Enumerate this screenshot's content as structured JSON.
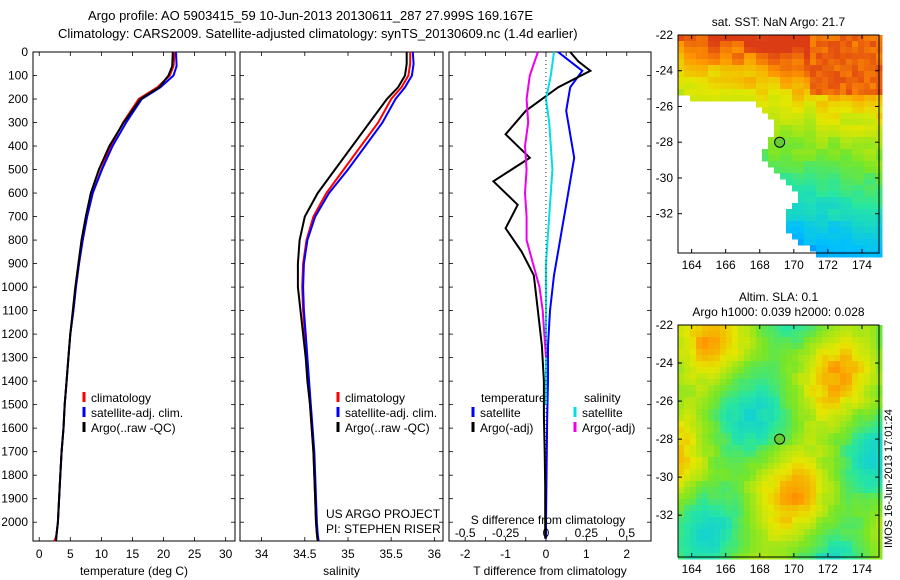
{
  "header": {
    "line1": "Argo profile: AO 5903415_59 10-Jun-2013 20130611_287 27.999S 169.167E",
    "line2": "Climatology: CARS2009. Satellite-adjusted climatology: synTS_20130609.nc (1.4d earlier)"
  },
  "colors": {
    "climatology": "#ff0000",
    "satellite": "#0000ff",
    "argo": "#000000",
    "salinity_satellite": "#00e0e0",
    "salinity_argo": "#ee00ee"
  },
  "chart_data": [
    {
      "type": "line",
      "xlabel": "temperature (deg C)",
      "xticks": [
        "0",
        "5",
        "10",
        "15",
        "20",
        "25",
        "30"
      ],
      "xlim": [
        -1,
        31.5
      ],
      "ylim": [
        0,
        2080
      ],
      "yticks": [
        "0",
        "100",
        "200",
        "300",
        "400",
        "500",
        "600",
        "700",
        "800",
        "900",
        "1000",
        "1100",
        "1200",
        "1300",
        "1400",
        "1500",
        "1600",
        "1700",
        "1800",
        "1900",
        "2000"
      ],
      "legend": [
        "climatology",
        "satellite-adj. clim.",
        "Argo(..raw -QC)"
      ],
      "series": [
        {
          "name": "climatology",
          "color": "#ff0000",
          "x": [
            21.8,
            21.6,
            21.0,
            19.0,
            16.0,
            13.5,
            11.5,
            10.0,
            8.6,
            7.7,
            7.0,
            6.4,
            5.9,
            5.5,
            5.0,
            4.7,
            4.4,
            4.1,
            3.9,
            3.6,
            3.4,
            3.2,
            3.0,
            2.8,
            2.7,
            2.6,
            2.5,
            2.4
          ],
          "y": [
            0,
            60,
            100,
            150,
            200,
            300,
            400,
            500,
            600,
            700,
            800,
            900,
            1000,
            1100,
            1200,
            1300,
            1400,
            1500,
            1600,
            1700,
            1800,
            1900,
            2000,
            2050,
            2060,
            2070,
            2075,
            2080
          ]
        },
        {
          "name": "satellite-adj. clim.",
          "color": "#0000ff",
          "x": [
            22.0,
            22.1,
            21.6,
            19.5,
            16.5,
            14.0,
            11.8,
            10.1,
            8.6,
            7.7,
            7.0,
            6.4,
            5.9,
            5.5,
            5.0,
            4.7,
            4.4,
            4.1,
            3.9,
            3.6,
            3.4,
            3.2,
            3.0,
            2.8,
            2.7
          ],
          "y": [
            0,
            60,
            100,
            150,
            200,
            300,
            400,
            500,
            600,
            700,
            800,
            900,
            1000,
            1100,
            1200,
            1300,
            1400,
            1500,
            1600,
            1700,
            1800,
            1900,
            2000,
            2050,
            2080
          ]
        },
        {
          "name": "Argo(..raw -QC)",
          "color": "#000000",
          "x": [
            21.5,
            21.4,
            20.8,
            19.3,
            16.3,
            13.6,
            11.3,
            9.6,
            8.3,
            7.5,
            6.8,
            6.3,
            5.8,
            5.4,
            5.0,
            4.7,
            4.4,
            4.1,
            3.9,
            3.6,
            3.4,
            3.2,
            3.0,
            2.8,
            2.7
          ],
          "y": [
            0,
            60,
            100,
            150,
            200,
            300,
            400,
            500,
            600,
            700,
            800,
            900,
            1000,
            1100,
            1200,
            1300,
            1400,
            1500,
            1600,
            1700,
            1800,
            1900,
            2000,
            2050,
            2080
          ]
        }
      ]
    },
    {
      "type": "line",
      "xlabel": "salinity",
      "xticks": [
        "34",
        "34.5",
        "35",
        "35.5",
        "36"
      ],
      "xlim": [
        33.75,
        36.1
      ],
      "ylim": [
        0,
        2080
      ],
      "legend": [
        "climatology",
        "satellite-adj. clim.",
        "Argo(..raw -QC)"
      ],
      "annotations": [
        "US ARGO PROJECT",
        "PI: STEPHEN RISER"
      ],
      "series": [
        {
          "name": "climatology",
          "color": "#ff0000",
          "x": [
            35.72,
            35.72,
            35.7,
            35.62,
            35.5,
            35.35,
            35.15,
            34.95,
            34.75,
            34.6,
            34.52,
            34.48,
            34.47,
            34.48,
            34.5,
            34.52,
            34.54,
            34.56,
            34.58,
            34.6,
            34.61,
            34.62,
            34.63,
            34.64,
            34.65
          ],
          "y": [
            0,
            50,
            100,
            150,
            200,
            300,
            400,
            500,
            600,
            700,
            800,
            900,
            1000,
            1100,
            1200,
            1300,
            1400,
            1500,
            1600,
            1700,
            1800,
            1900,
            2000,
            2050,
            2080
          ]
        },
        {
          "name": "satellite-adj. clim.",
          "color": "#0000ff",
          "x": [
            35.75,
            35.76,
            35.74,
            35.66,
            35.55,
            35.4,
            35.2,
            35.0,
            34.78,
            34.62,
            34.53,
            34.49,
            34.48,
            34.49,
            34.51,
            34.53,
            34.55,
            34.57,
            34.59,
            34.61,
            34.62,
            34.63,
            34.64,
            34.65,
            34.66
          ],
          "y": [
            0,
            50,
            100,
            150,
            200,
            300,
            400,
            500,
            600,
            700,
            800,
            900,
            1000,
            1100,
            1200,
            1300,
            1400,
            1500,
            1600,
            1700,
            1800,
            1900,
            2000,
            2050,
            2080
          ]
        },
        {
          "name": "Argo(..raw -QC)",
          "color": "#000000",
          "x": [
            35.68,
            35.68,
            35.66,
            35.58,
            35.45,
            35.25,
            35.05,
            34.85,
            34.65,
            34.5,
            34.44,
            34.42,
            34.42,
            34.45,
            34.48,
            34.51,
            34.53,
            34.56,
            34.58,
            34.6,
            34.61,
            34.62,
            34.63,
            34.64,
            34.65
          ],
          "y": [
            0,
            50,
            100,
            150,
            200,
            300,
            400,
            500,
            600,
            700,
            800,
            900,
            1000,
            1100,
            1200,
            1300,
            1400,
            1500,
            1600,
            1700,
            1800,
            1900,
            2000,
            2050,
            2080
          ]
        }
      ]
    },
    {
      "type": "line",
      "xlabel": "T difference from climatology",
      "xlabel2": "S difference from climatology",
      "xticks": [
        "-2",
        "-1.5",
        "-1",
        "-0.5",
        "0",
        "0.5",
        "1",
        "1.5",
        "2"
      ],
      "xticks_visible": [
        "-2",
        "-1",
        "0",
        "1",
        "2"
      ],
      "s_xticks": [
        "-0.5",
        "-0.25",
        "0",
        "0.25",
        "0.5"
      ],
      "xlim": [
        -2.4,
        2.6
      ],
      "ylim": [
        0,
        2080
      ],
      "legend_left_title": "temperature",
      "legend_right_title": "salinity",
      "legend": [
        "satellite",
        "Argo(-adj)",
        "satellite",
        "Argo(-adj)"
      ],
      "series": [
        {
          "name": "T satellite",
          "color": "#0000ff",
          "x": [
            0.3,
            0.6,
            0.9,
            0.6,
            0.5,
            0.6,
            0.7,
            0.6,
            0.5,
            0.4,
            0.3,
            0.2,
            0.1,
            0.05,
            0.05,
            0.03,
            0.02,
            0.01,
            0.0,
            0.0
          ],
          "y": [
            0,
            40,
            80,
            150,
            250,
            350,
            450,
            550,
            650,
            750,
            850,
            950,
            1100,
            1250,
            1400,
            1550,
            1700,
            1850,
            2000,
            2070
          ]
        },
        {
          "name": "T Argo(-adj)",
          "color": "#000000",
          "x": [
            0.6,
            0.8,
            1.1,
            0.3,
            -0.5,
            -1.0,
            -0.4,
            -1.3,
            -0.7,
            -1.0,
            -0.6,
            -0.3,
            -0.2,
            -0.1,
            -0.05,
            -0.05,
            -0.03,
            -0.02,
            -0.02,
            -0.02
          ],
          "y": [
            0,
            40,
            80,
            150,
            250,
            350,
            450,
            550,
            650,
            750,
            850,
            950,
            1100,
            1250,
            1400,
            1550,
            1700,
            1850,
            2000,
            2070
          ]
        },
        {
          "name": "S satellite",
          "color": "#00e0e0",
          "x": [
            0.05,
            0.03,
            0.0,
            0.02,
            0.03,
            0.04,
            0.03,
            0.02,
            0.01,
            0.0,
            0.0,
            0.0,
            0.0,
            0.0,
            0.0,
            0.0
          ],
          "y": [
            0,
            100,
            200,
            300,
            400,
            500,
            600,
            700,
            800,
            900,
            1000,
            1100,
            1200,
            1300,
            1400,
            1500
          ]
        },
        {
          "name": "S Argo(-adj)",
          "color": "#ee00ee",
          "x": [
            -0.05,
            -0.1,
            -0.12,
            -0.11,
            -0.13,
            -0.12,
            -0.13,
            -0.12,
            -0.12,
            -0.08,
            -0.04,
            -0.02,
            -0.01,
            0.0
          ],
          "y": [
            0,
            100,
            200,
            300,
            400,
            500,
            600,
            700,
            800,
            900,
            1000,
            1100,
            1200,
            1300
          ]
        }
      ]
    },
    {
      "type": "heatmap",
      "title": "sat. SST: NaN Argo: 21.7",
      "xticks": [
        "164",
        "166",
        "168",
        "170",
        "172",
        "174"
      ],
      "yticks": [
        "-22",
        "-24",
        "-26",
        "-28",
        "-30",
        "-32"
      ],
      "xlim": [
        163.2,
        175.0
      ],
      "ylim": [
        -34.2,
        -22.0
      ],
      "marker": {
        "lon": 169.167,
        "lat": -27.999
      }
    },
    {
      "type": "heatmap",
      "title": "Altim. SLA: 0.1",
      "subtitle": "Argo h1000: 0.039 h2000: 0.028",
      "xticks": [
        "164",
        "166",
        "168",
        "170",
        "172",
        "174"
      ],
      "yticks": [
        "-22",
        "-24",
        "-26",
        "-28",
        "-30",
        "-32"
      ],
      "xlim": [
        163.2,
        175.0
      ],
      "ylim": [
        -34.2,
        -22.0
      ],
      "marker": {
        "lon": 169.167,
        "lat": -27.999
      }
    }
  ],
  "footer": {
    "imos_stamp": "IMOS 16-Jun-2013 17:01:24"
  }
}
